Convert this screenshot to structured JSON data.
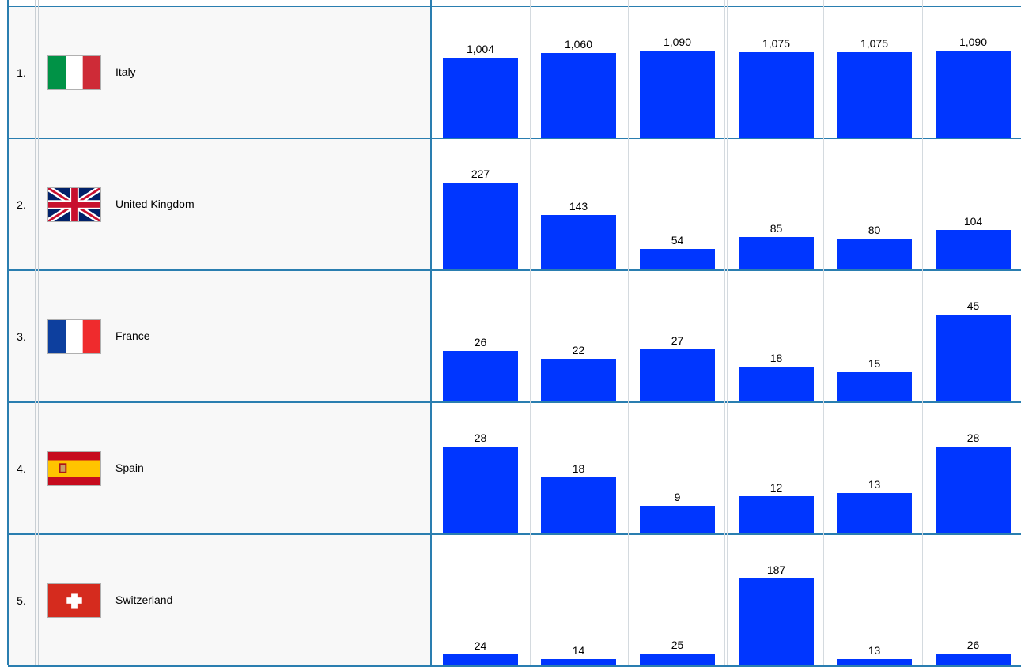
{
  "rows": [
    {
      "rank": "1.",
      "country": "Italy",
      "flag": "italy-flag",
      "values": [
        1004,
        1060,
        1090,
        1075,
        1075,
        1090
      ],
      "labels": [
        "1,004",
        "1,060",
        "1,090",
        "1,075",
        "1,075",
        "1,090"
      ]
    },
    {
      "rank": "2.",
      "country": "United Kingdom",
      "flag": "uk-flag",
      "values": [
        227,
        143,
        54,
        85,
        80,
        104
      ],
      "labels": [
        "227",
        "143",
        "54",
        "85",
        "80",
        "104"
      ]
    },
    {
      "rank": "3.",
      "country": "France",
      "flag": "france-flag",
      "values": [
        26,
        22,
        27,
        18,
        15,
        45
      ],
      "labels": [
        "26",
        "22",
        "27",
        "18",
        "15",
        "45"
      ]
    },
    {
      "rank": "4.",
      "country": "Spain",
      "flag": "spain-flag",
      "values": [
        28,
        18,
        9,
        12,
        13,
        28
      ],
      "labels": [
        "28",
        "18",
        "9",
        "12",
        "13",
        "28"
      ]
    },
    {
      "rank": "5.",
      "country": "Switzerland",
      "flag": "switzerland-flag",
      "values": [
        24,
        14,
        25,
        187,
        13,
        26
      ],
      "labels": [
        "24",
        "14",
        "25",
        "187",
        "13",
        "26"
      ]
    }
  ],
  "colors": {
    "bar": "#0036ff",
    "grid": "#2a7eb0",
    "cell_bg": "#f8f8f8"
  }
}
